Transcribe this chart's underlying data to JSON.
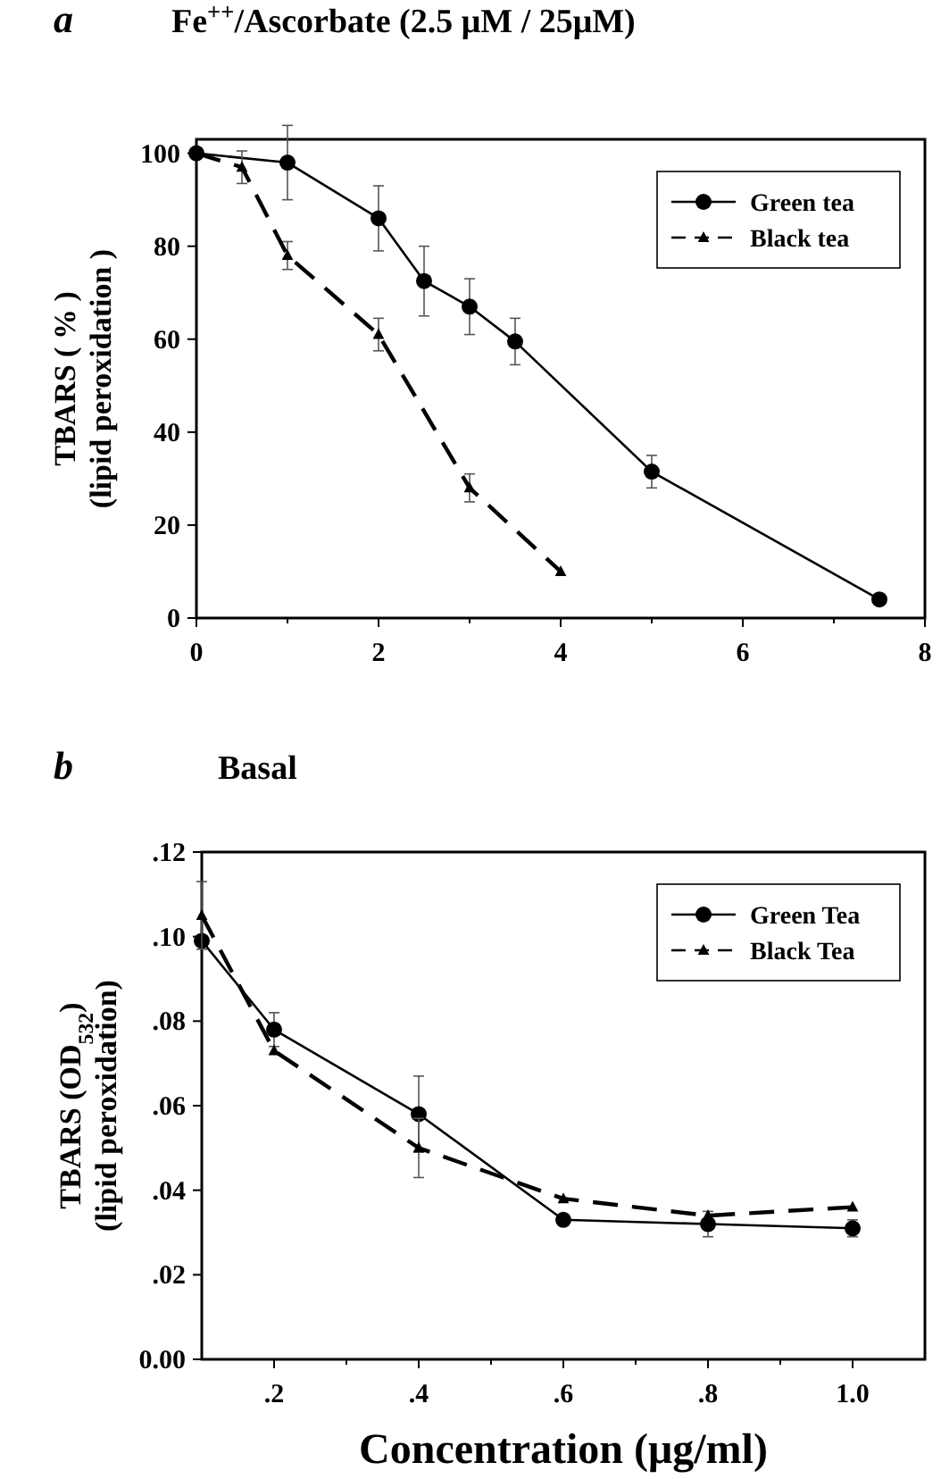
{
  "chart_data": [
    {
      "type": "line",
      "title": "Fe$^{++}$/Ascorbate  (2.5 μM / 25μM)",
      "annotations": [
        "a"
      ],
      "ylabel": "TBARS ( % )\n(lipid peroxidation )",
      "xlim": [
        0,
        8
      ],
      "xticks": [
        0,
        {
          "value": 1,
          "label": null
        },
        2,
        {
          "value": 3,
          "label": null
        },
        4,
        {
          "value": 5,
          "label": null
        },
        6,
        {
          "value": 7,
          "label": null
        },
        8
      ],
      "ylim": [
        0,
        103
      ],
      "yticks": [
        0,
        20,
        40,
        60,
        80,
        100
      ],
      "grid": false,
      "legend": "top right",
      "series": [
        {
          "name": "Green tea",
          "color": "#000000",
          "marker": "circle",
          "line_style": "solid",
          "x": [
            0,
            1,
            2,
            2.5,
            3,
            3.5,
            5,
            7.5
          ],
          "values": [
            100,
            98,
            86,
            72.5,
            67,
            59.5,
            31.5,
            4
          ],
          "errors": [
            null,
            8,
            7,
            7.5,
            6,
            5,
            3.5,
            1
          ]
        },
        {
          "name": "Black tea",
          "color": "#000000",
          "marker": "triangle",
          "line_style": "dashed",
          "x": [
            0,
            0.5,
            1,
            2,
            3,
            4
          ],
          "values": [
            100,
            97,
            78,
            61,
            28,
            10
          ],
          "errors": [
            null,
            3.5,
            3,
            3.5,
            3,
            null
          ]
        }
      ]
    },
    {
      "type": "line",
      "title": "Basal",
      "annotations": [
        "b"
      ],
      "xlabel": "Concentration (μg/ml)",
      "ylabel": "TBARS (OD$_{532}$)\n(lipid peroxidation)",
      "xlim": [
        0.1,
        1.1
      ],
      "xticks": [
        {
          "value": 0.2,
          "label": ".2"
        },
        {
          "value": 0.3,
          "label": null
        },
        {
          "value": 0.4,
          "label": ".4"
        },
        {
          "value": 0.5,
          "label": null
        },
        {
          "value": 0.6,
          "label": ".6"
        },
        {
          "value": 0.7,
          "label": null
        },
        {
          "value": 0.8,
          "label": ".8"
        },
        {
          "value": 0.9,
          "label": null
        },
        {
          "value": 1.0,
          "label": "1.0"
        }
      ],
      "ylim": [
        0,
        0.12
      ],
      "yticks": [
        {
          "value": 0,
          "label": "0.00"
        },
        {
          "value": 0.02,
          "label": ".02"
        },
        {
          "value": 0.04,
          "label": ".04"
        },
        {
          "value": 0.06,
          "label": ".06"
        },
        {
          "value": 0.08,
          "label": ".08"
        },
        {
          "value": 0.1,
          "label": ".10"
        },
        {
          "value": 0.12,
          "label": ".12"
        }
      ],
      "grid": false,
      "legend": "top right",
      "series": [
        {
          "name": "Green Tea",
          "color": "#000000",
          "marker": "circle",
          "line_style": "solid",
          "x": [
            0.1,
            0.2,
            0.4,
            0.6,
            0.8,
            1.0
          ],
          "values": [
            0.099,
            0.078,
            0.058,
            0.033,
            0.032,
            0.031
          ],
          "errors": [
            null,
            0.004,
            0.009,
            null,
            0.003,
            0.002
          ]
        },
        {
          "name": "Black Tea",
          "color": "#000000",
          "marker": "triangle",
          "line_style": "dashed",
          "x": [
            0.1,
            0.2,
            0.4,
            0.6,
            0.8,
            1.0
          ],
          "values": [
            0.105,
            0.073,
            0.05,
            0.038,
            0.034,
            0.036
          ],
          "errors": [
            0.008,
            null,
            0.007,
            null,
            null,
            null
          ]
        }
      ]
    }
  ]
}
